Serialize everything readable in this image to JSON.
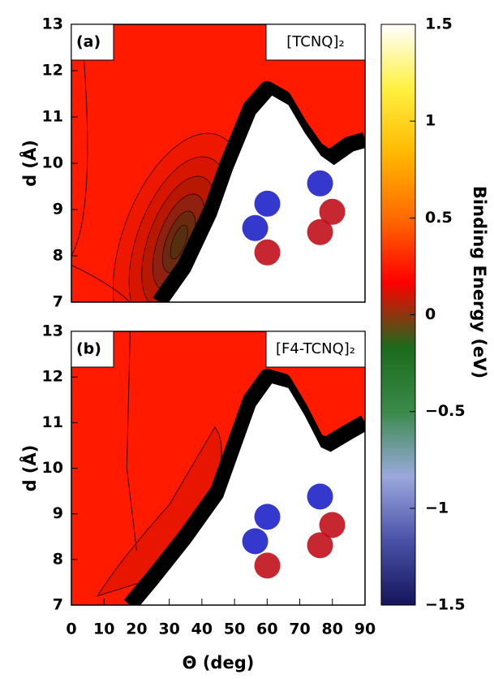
{
  "chart_data": [
    {
      "type": "contour",
      "label": "(a)",
      "title": "[TCNQ]₂",
      "ylabel": "d (Å)",
      "xlim": [
        0,
        90
      ],
      "ylim": [
        7,
        13
      ],
      "yticks": [
        7,
        8,
        9,
        10,
        11,
        12,
        13
      ]
    },
    {
      "type": "contour",
      "label": "(b)",
      "title": "[F4-TCNQ]₂",
      "ylabel": "d (Å)",
      "xlabel": "Θ (deg)",
      "xlim": [
        0,
        90
      ],
      "ylim": [
        7,
        13
      ],
      "xticks": [
        0,
        10,
        20,
        30,
        40,
        50,
        60,
        70,
        80,
        90
      ],
      "yticks": [
        7,
        8,
        9,
        10,
        11,
        12,
        13
      ]
    },
    {
      "type": "colorbar",
      "label": "Binding Energy (eV)",
      "clim": [
        -1.5,
        1.5
      ],
      "colormap": [
        "#14145a",
        "#4a52a8",
        "#9aa8dc",
        "#3a8a4a",
        "#1c6a1c",
        "#ff0000",
        "#ff6a00",
        "#ffb800",
        "#fff040",
        "#ffffff"
      ],
      "ticks": [
        {
          "value": -1.5,
          "label": "−1.5"
        },
        {
          "value": -1,
          "label": "−1"
        },
        {
          "value": -0.5,
          "label": "−0.5"
        },
        0,
        0.5,
        1,
        1.5
      ]
    }
  ]
}
